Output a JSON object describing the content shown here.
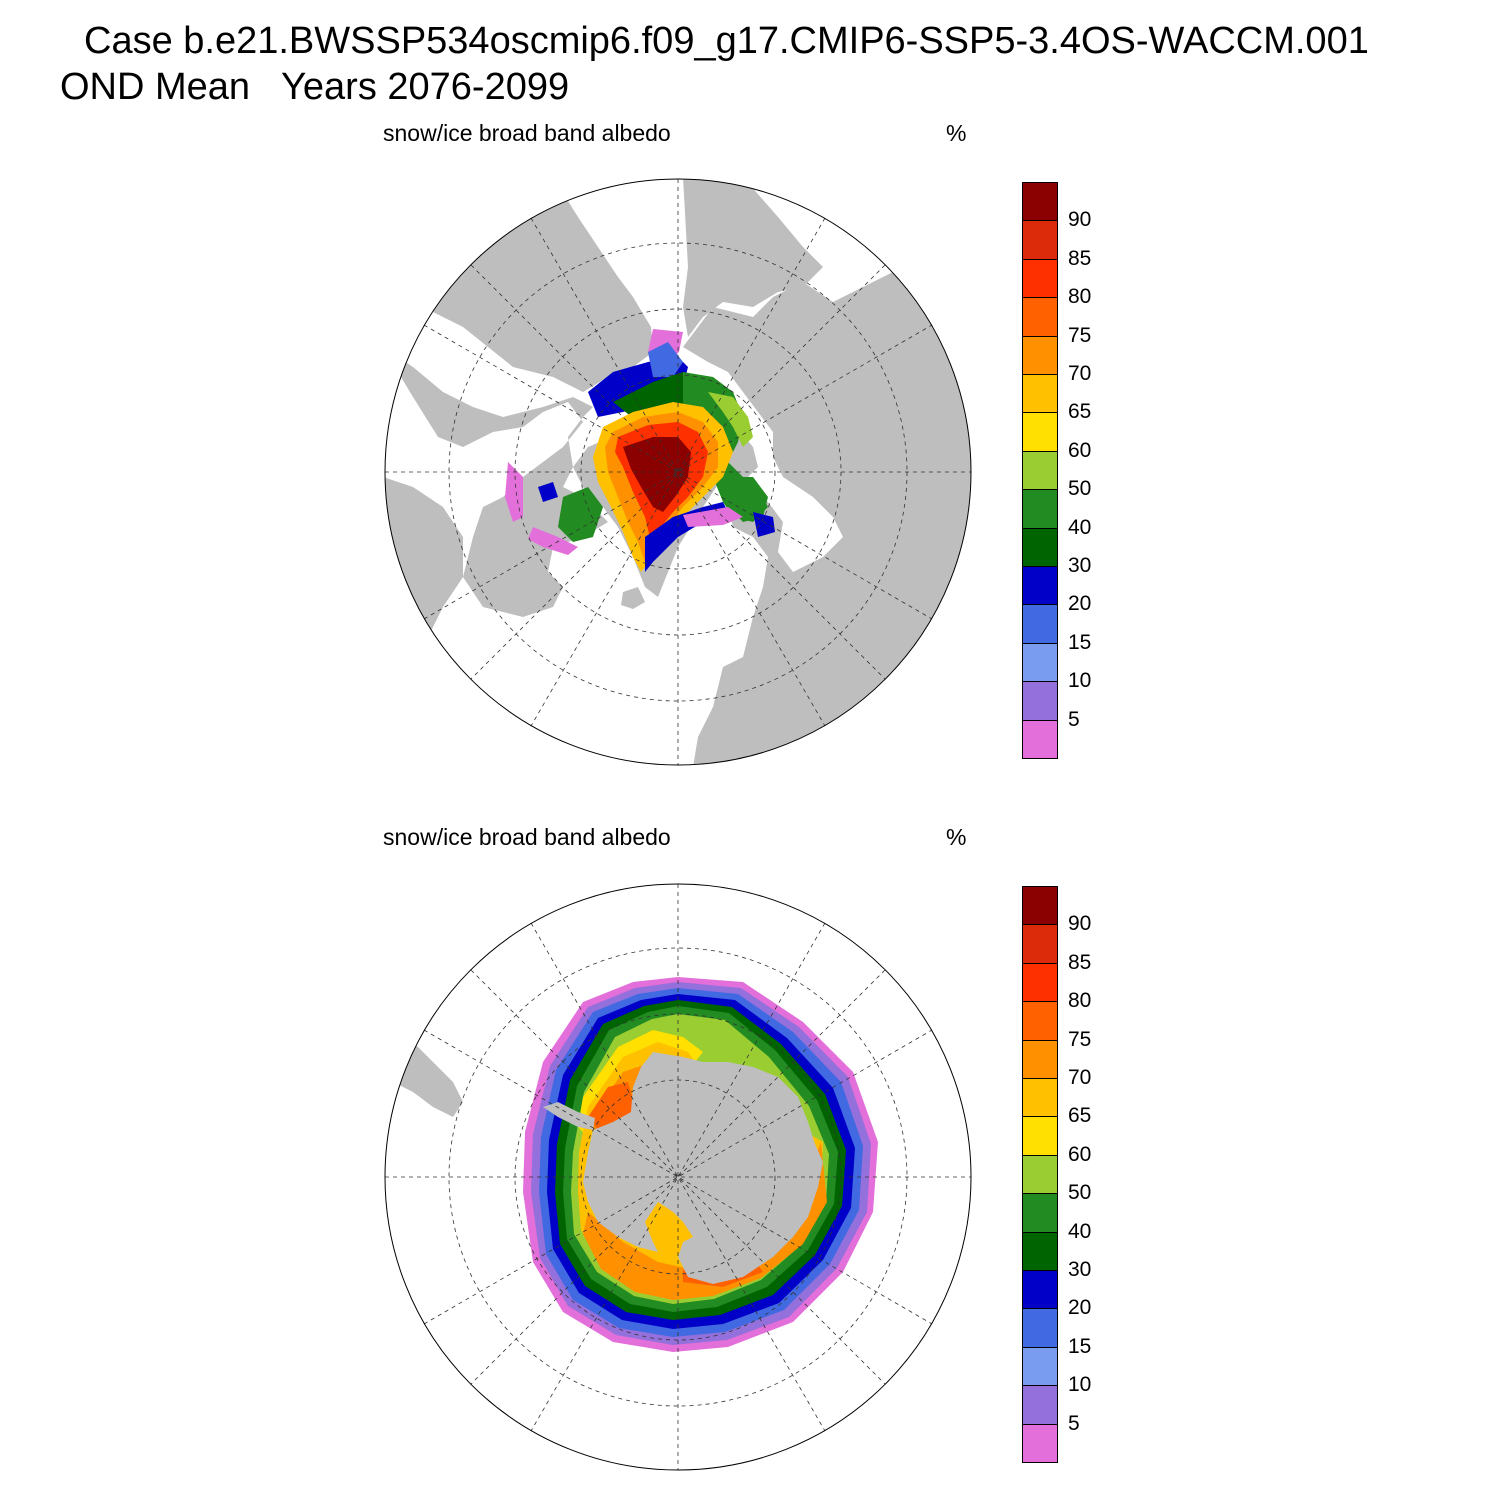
{
  "header": {
    "title": "Case b.e21.BWSSP534oscmip6.f09_g17.CMIP6-SSP5-3.4OS-WACCM.001",
    "subtitle": "OND Mean   Years 2076-2099"
  },
  "panels": [
    {
      "title": "snow/ice broad band albedo",
      "units": "%",
      "hemisphere": "north"
    },
    {
      "title": "snow/ice broad band albedo",
      "units": "%",
      "hemisphere": "south"
    }
  ],
  "colorbar": {
    "levels": [
      5,
      10,
      15,
      20,
      30,
      40,
      50,
      60,
      65,
      70,
      75,
      80,
      85,
      90
    ],
    "labels": [
      "90",
      "85",
      "80",
      "75",
      "70",
      "65",
      "60",
      "50",
      "40",
      "30",
      "20",
      "15",
      "10",
      "5"
    ],
    "colors": [
      "#e36fda",
      "#9370db",
      "#7a9cf0",
      "#4169e1",
      "#0000c8",
      "#006400",
      "#228b22",
      "#9acd32",
      "#ffe000",
      "#ffc000",
      "#ff9000",
      "#ff6000",
      "#ff3000",
      "#dc2b0a",
      "#8b0000"
    ]
  },
  "map_style": {
    "land_color": "#bebebe",
    "ocean_color": "#ffffff",
    "graticule": "dashed"
  }
}
